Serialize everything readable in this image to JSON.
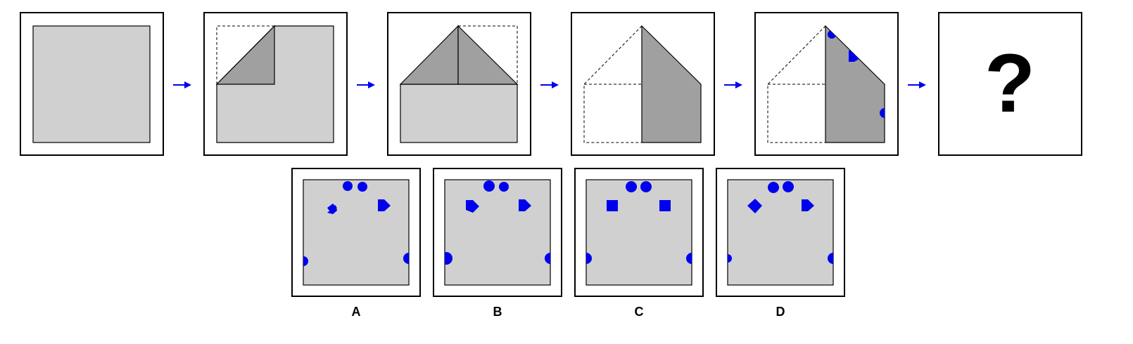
{
  "puzzle": {
    "question_mark": "?",
    "options": [
      {
        "label": "A"
      },
      {
        "label": "B"
      },
      {
        "label": "C"
      },
      {
        "label": "D"
      }
    ]
  },
  "colors": {
    "paper": "#d0d0d0",
    "folded_flap": "#a0a0a0",
    "marks": "#0000ee",
    "arrows": "#0000ee"
  }
}
